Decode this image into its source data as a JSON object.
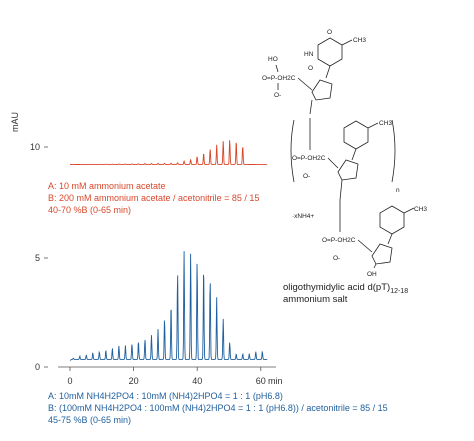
{
  "chart_data": [
    {
      "type": "line",
      "ylabel": "mAU",
      "yticks": [
        10
      ],
      "color": "#d9472b",
      "series": [
        {
          "name": "",
          "x": [
            0,
            3,
            6,
            9,
            12,
            15,
            18,
            21,
            24,
            27,
            30,
            32,
            34,
            36,
            38,
            40,
            42,
            44,
            46,
            48,
            50,
            52,
            54,
            56,
            58,
            60,
            62
          ],
          "values": [
            0.2,
            0.3,
            0.35,
            0.4,
            0.45,
            0.55,
            0.6,
            0.7,
            0.8,
            0.9,
            1.0,
            1.1,
            1.3,
            2.2,
            3.2,
            4.8,
            6.6,
            9.0,
            11.2,
            13.2,
            14.2,
            13.6,
            12.8,
            0.3,
            0.25,
            0.2,
            0.2
          ]
        }
      ],
      "conditions": [
        "A: 10 mM ammonium acetate",
        "B: 200 mM ammonium acetate / acetonitrile = 85 / 15",
        "40-70 %B (0-65 min)"
      ]
    },
    {
      "type": "line",
      "ylabel": "",
      "yticks": [
        0,
        5
      ],
      "xticks": [
        0,
        20,
        40,
        60
      ],
      "xlabel": "min",
      "color": "#1f5f9e",
      "series": [
        {
          "name": "",
          "x": [
            0,
            2,
            4,
            6,
            8,
            10,
            12,
            14,
            16,
            18,
            20,
            22,
            24,
            26,
            28,
            30,
            32,
            34,
            36,
            38,
            40,
            42,
            44,
            46,
            48,
            50,
            52,
            54,
            56,
            58,
            60,
            62
          ],
          "values": [
            0.3,
            0.5,
            0.5,
            0.6,
            0.7,
            0.7,
            0.8,
            0.9,
            1.0,
            1.0,
            1.1,
            1.2,
            1.3,
            1.5,
            1.8,
            2.3,
            3.0,
            4.5,
            5.4,
            5.2,
            4.9,
            4.7,
            4.1,
            3.3,
            2.3,
            1.2,
            0.6,
            0.6,
            0.6,
            0.7,
            0.7,
            0.8
          ]
        }
      ],
      "conditions": [
        "A: 10mM NH4H2PO4 : 10mM (NH4)2HPO4 = 1 : 1 (pH6.8)",
        "B: (100mM NH4H2PO4 : 100mM (NH4)2HPO4 = 1 : 1 (pH6.8)) / acetonitrile = 85 / 15",
        "45-75 %B (0-65 min)"
      ]
    }
  ],
  "structure": {
    "caption_line1": "oligothymidylic acid d(pT)",
    "caption_sub": "12-18",
    "caption_line2": "ammonium salt",
    "labels": {
      "ho": "HO",
      "ch3_top": "CH3",
      "ch3_mid": "CH3",
      "ch3_bot": "CH3",
      "ho_p": "HO",
      "p_top": "O=P-OH2C",
      "o_minus_top": "O-",
      "p_mid": "O=P-OH2C",
      "o_minus_mid": "O-",
      "p_bot": "O=P-OH2C",
      "o_minus_bot": "O-",
      "n_sub": "n",
      "nh4": "·xNH4+",
      "oh": "OH",
      "hn": "HN",
      "n": "N",
      "o": "O"
    }
  }
}
